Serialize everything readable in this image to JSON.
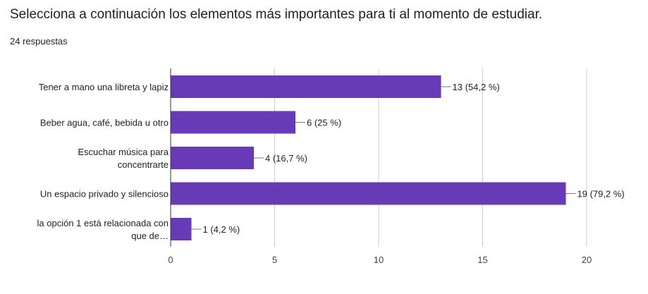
{
  "header": {
    "title": "Selecciona a continuación los elementos más importantes para ti al momento de estudiar.",
    "responses": "24 respuestas"
  },
  "colors": {
    "bar": "#673ab7",
    "grid": "#cccccc",
    "axis": "#333333",
    "text": "#222222"
  },
  "chart_data": {
    "type": "bar",
    "orientation": "horizontal",
    "categories": [
      [
        "Tener a mano una libreta y lapiz"
      ],
      [
        "Beber agua, café, bebida u otro"
      ],
      [
        "Escuchar música para",
        "concentrarte"
      ],
      [
        "Un espacio privado y silencioso"
      ],
      [
        "la opción 1 está relacionada con",
        "que de…"
      ]
    ],
    "values": [
      13,
      6,
      4,
      19,
      1
    ],
    "value_labels": [
      "13 (54,2 %)",
      "6 (25 %)",
      "4 (16,7 %)",
      "19 (79,2 %)",
      "1 (4,2 %)"
    ],
    "xlim": [
      0,
      20
    ],
    "xticks": [
      0,
      5,
      10,
      15,
      20
    ],
    "grid": true
  }
}
